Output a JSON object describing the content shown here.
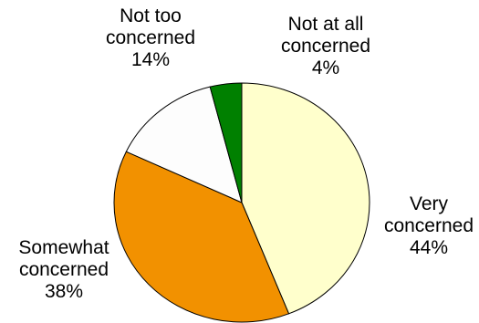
{
  "chart_data": {
    "type": "pie",
    "slices": [
      {
        "label_lines": [
          "Very",
          "concerned"
        ],
        "value": 44,
        "value_label": "44%",
        "color": "#FFFFCC"
      },
      {
        "label_lines": [
          "Somewhat",
          "concerned"
        ],
        "value": 38,
        "value_label": "38%",
        "color": "#F29100"
      },
      {
        "label_lines": [
          "Not too",
          "concerned"
        ],
        "value": 14,
        "value_label": "14%",
        "color": "#FDFDFD"
      },
      {
        "label_lines": [
          "Not at all",
          "concerned"
        ],
        "value": 4,
        "value_label": "4%",
        "color": "#008000"
      }
    ],
    "start_angle_deg": 0,
    "direction": "clockwise",
    "legend": "none",
    "grid": false
  }
}
